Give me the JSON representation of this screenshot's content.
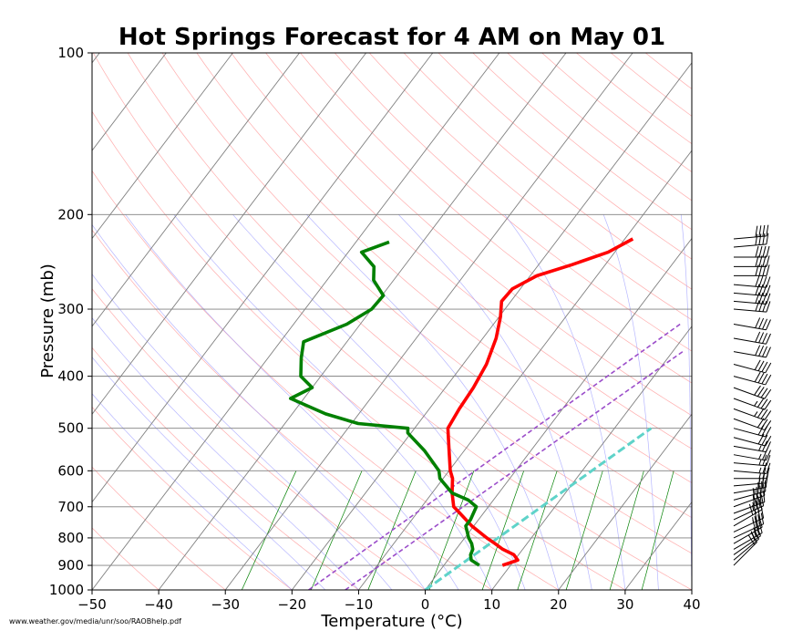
{
  "chart_data": {
    "type": "line",
    "title": "Hot Springs Forecast for 4 AM on May 01",
    "xlabel": "Temperature ($^\\circ$C)",
    "xlabel_display": "Temperature (°C)",
    "ylabel": "Pressure (mb)",
    "source_note": "www.weather.gov/media/unr/soo/RAOBhelp.pdf",
    "xlim": [
      -50,
      40
    ],
    "ylim": [
      1000,
      100
    ],
    "y_scale": "log",
    "skew_t": true,
    "x_ticks": [
      -50,
      -40,
      -30,
      -20,
      -10,
      0,
      10,
      20,
      30,
      40
    ],
    "x_tick_labels": [
      "−50",
      "−40",
      "−30",
      "−20",
      "−10",
      "0",
      "10",
      "20",
      "30",
      "40"
    ],
    "y_ticks": [
      100,
      200,
      300,
      400,
      500,
      600,
      700,
      800,
      900,
      1000
    ],
    "y_tick_labels": [
      "100",
      "200",
      "300",
      "400",
      "500",
      "600",
      "700",
      "800",
      "900",
      "1000"
    ],
    "colors": {
      "temperature": "#ff0000",
      "dewpoint": "#008000",
      "parcel": "#9b4dca",
      "lcl_line": "#5fd3c9",
      "isotherm": "#808080",
      "isobar": "#808080",
      "dry_adiabat": "#ff9999",
      "moist_adiabat": "#9999ff",
      "mixing_ratio": "#008000"
    },
    "series": [
      {
        "name": "Temperature",
        "pressure": [
          900,
          880,
          860,
          840,
          820,
          800,
          760,
          720,
          700,
          660,
          620,
          600,
          550,
          500,
          460,
          420,
          380,
          340,
          310,
          290,
          275,
          260,
          248,
          235,
          222
        ],
        "temperature": [
          8.8,
          10.5,
          9.3,
          7.0,
          5.2,
          3.3,
          -0.3,
          -3.5,
          -5.2,
          -7.0,
          -8.6,
          -9.8,
          -12.3,
          -15.0,
          -15.5,
          -15.8,
          -16.5,
          -18.0,
          -19.8,
          -21.4,
          -21.2,
          -19.0,
          -15.0,
          -11.0,
          -8.8
        ]
      },
      {
        "name": "Dewpoint",
        "pressure": [
          900,
          880,
          860,
          840,
          820,
          800,
          760,
          740,
          700,
          680,
          660,
          620,
          600,
          550,
          510,
          500,
          490,
          470,
          440,
          420,
          400,
          370,
          345,
          320,
          300,
          283,
          265,
          250,
          235,
          225
        ],
        "temperature": [
          5.3,
          3.5,
          2.8,
          2.5,
          1.7,
          0.6,
          -1.2,
          -1.2,
          -1.8,
          -3.8,
          -7.0,
          -10.5,
          -11.5,
          -16.0,
          -20.5,
          -21.0,
          -29.0,
          -35.0,
          -42.0,
          -40.0,
          -43.0,
          -45.0,
          -46.5,
          -42.0,
          -40.0,
          -39.8,
          -43.0,
          -44.5,
          -48.0,
          -45.0
        ]
      }
    ],
    "parcel_lines": [
      {
        "name": "Parcel",
        "pressure": [
          1000,
          320
        ],
        "temperature": [
          -17.5,
          8.0
        ]
      },
      {
        "name": "Parcel",
        "pressure": [
          1000,
          360
        ],
        "temperature": [
          -12.0,
          11.5
        ]
      }
    ],
    "lcl_line": {
      "pressure": [
        1000,
        500
      ],
      "temperature": [
        0.0,
        15.5
      ]
    },
    "wind_barbs": [
      {
        "pressure": 900,
        "direction": 225,
        "speed": 20
      },
      {
        "pressure": 880,
        "direction": 230,
        "speed": 20
      },
      {
        "pressure": 860,
        "direction": 235,
        "speed": 25
      },
      {
        "pressure": 840,
        "direction": 240,
        "speed": 25
      },
      {
        "pressure": 820,
        "direction": 240,
        "speed": 30
      },
      {
        "pressure": 800,
        "direction": 245,
        "speed": 30
      },
      {
        "pressure": 780,
        "direction": 245,
        "speed": 35
      },
      {
        "pressure": 760,
        "direction": 240,
        "speed": 40
      },
      {
        "pressure": 740,
        "direction": 245,
        "speed": 35
      },
      {
        "pressure": 720,
        "direction": 250,
        "speed": 40
      },
      {
        "pressure": 700,
        "direction": 250,
        "speed": 40
      },
      {
        "pressure": 680,
        "direction": 255,
        "speed": 35
      },
      {
        "pressure": 660,
        "direction": 260,
        "speed": 30
      },
      {
        "pressure": 640,
        "direction": 265,
        "speed": 25
      },
      {
        "pressure": 620,
        "direction": 270,
        "speed": 25
      },
      {
        "pressure": 600,
        "direction": 275,
        "speed": 25
      },
      {
        "pressure": 580,
        "direction": 275,
        "speed": 25
      },
      {
        "pressure": 560,
        "direction": 280,
        "speed": 25
      },
      {
        "pressure": 540,
        "direction": 280,
        "speed": 25
      },
      {
        "pressure": 520,
        "direction": 285,
        "speed": 30
      },
      {
        "pressure": 500,
        "direction": 285,
        "speed": 30
      },
      {
        "pressure": 480,
        "direction": 290,
        "speed": 30
      },
      {
        "pressure": 460,
        "direction": 290,
        "speed": 35
      },
      {
        "pressure": 440,
        "direction": 290,
        "speed": 35
      },
      {
        "pressure": 420,
        "direction": 290,
        "speed": 40
      },
      {
        "pressure": 400,
        "direction": 285,
        "speed": 40
      },
      {
        "pressure": 380,
        "direction": 285,
        "speed": 40
      },
      {
        "pressure": 360,
        "direction": 280,
        "speed": 40
      },
      {
        "pressure": 340,
        "direction": 280,
        "speed": 40
      },
      {
        "pressure": 320,
        "direction": 280,
        "speed": 40
      },
      {
        "pressure": 300,
        "direction": 275,
        "speed": 40
      },
      {
        "pressure": 290,
        "direction": 275,
        "speed": 40
      },
      {
        "pressure": 280,
        "direction": 275,
        "speed": 40
      },
      {
        "pressure": 270,
        "direction": 275,
        "speed": 40
      },
      {
        "pressure": 260,
        "direction": 270,
        "speed": 40
      },
      {
        "pressure": 250,
        "direction": 270,
        "speed": 40
      },
      {
        "pressure": 240,
        "direction": 270,
        "speed": 40
      },
      {
        "pressure": 230,
        "direction": 265,
        "speed": 40
      },
      {
        "pressure": 222,
        "direction": 265,
        "speed": 40
      }
    ],
    "grid": true,
    "legend": "none"
  }
}
